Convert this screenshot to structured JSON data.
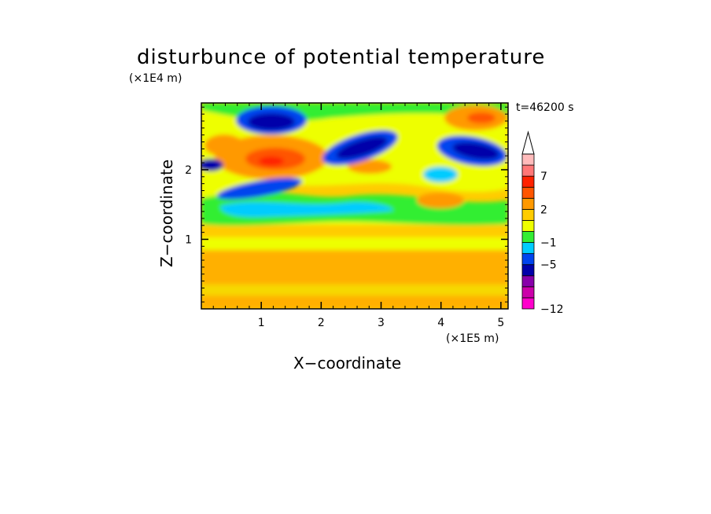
{
  "chart_data": {
    "type": "heatmap",
    "title": "disturbunce of potential temperature",
    "xlabel": "X−coordinate",
    "ylabel": "Z−coordinate",
    "x_scale_label": "(×1E5 m)",
    "y_scale_label": "(×1E4 m)",
    "time_label": "t=46200 s",
    "xlim": [
      0,
      5.12
    ],
    "ylim": [
      0,
      2.96
    ],
    "x_ticks": [
      1,
      2,
      3,
      4,
      5
    ],
    "x_tick_labels": [
      "1",
      "2",
      "3",
      "4",
      "5"
    ],
    "y_ticks": [
      1,
      2
    ],
    "y_tick_labels": [
      "1",
      "2"
    ],
    "colorbar": {
      "levels_bottom_to_top": [
        -12,
        -10,
        -8,
        -6,
        -5,
        -3,
        -1,
        0,
        1,
        2,
        3,
        5,
        7,
        9,
        11
      ],
      "colors_bottom_to_top": [
        "#ff00cc",
        "#cc00aa",
        "#8800aa",
        "#0000aa",
        "#0044ee",
        "#00ccff",
        "#33ee33",
        "#eeff00",
        "#ffcc00",
        "#ff9900",
        "#ff5500",
        "#ff2200",
        "#ff7777",
        "#ffbbbb"
      ],
      "extend_top_color": "#ffffff",
      "tick_labels": [
        "7",
        "2",
        "−1",
        "−5",
        "−12"
      ],
      "tick_values": [
        7,
        2,
        -1,
        -5,
        -12
      ]
    },
    "field_features": [
      {
        "x": 1.05,
        "z": 2.65,
        "value": -5
      },
      {
        "x": 1.3,
        "z": 2.1,
        "value": 7
      },
      {
        "x": 2.85,
        "z": 2.2,
        "value": -5
      },
      {
        "x": 4.55,
        "z": 2.25,
        "value": -5
      },
      {
        "x": 4.7,
        "z": 2.75,
        "value": 5
      },
      {
        "x": 0.75,
        "z": 1.7,
        "value": -3
      },
      {
        "x": 2.2,
        "z": 1.6,
        "value": -1
      },
      {
        "x": 1.0,
        "z": 0.65,
        "value": 2
      },
      {
        "x": 3.0,
        "z": 0.4,
        "value": 2
      }
    ]
  }
}
